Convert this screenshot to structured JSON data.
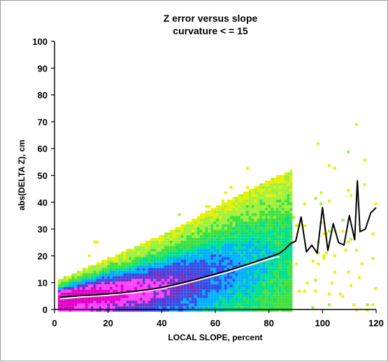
{
  "chart_data": {
    "type": "heatmap",
    "title": "Z error versus slope",
    "subtitle": "curvature < = 15",
    "xlabel": "LOCAL SLOPE, percent",
    "ylabel": "abs(DELTA Z), cm",
    "xlim": [
      0,
      120
    ],
    "ylim": [
      0,
      100
    ],
    "x_ticks": [
      0,
      20,
      40,
      60,
      80,
      100,
      120
    ],
    "y_ticks": [
      0,
      10,
      20,
      30,
      40,
      50,
      60,
      70,
      80,
      90,
      100
    ],
    "grid": false,
    "density_colors": {
      "highest": "#e000c8",
      "very_high": "#ff40ff",
      "high": "#7030c8",
      "medium_high": "#3050e8",
      "medium": "#00b0ff",
      "medium_low": "#00e090",
      "low": "#40e040",
      "lower": "#9ef03a",
      "lowest": "#e8f000"
    },
    "trend_lines": [
      {
        "color": "#ffffff",
        "x": [
          2,
          5,
          10,
          15,
          20,
          25,
          30,
          35,
          40,
          45,
          50,
          55,
          60,
          65,
          70,
          75,
          80,
          84
        ],
        "y": [
          4,
          4.2,
          4.7,
          5,
          5.3,
          5.8,
          6.3,
          7,
          7.8,
          8.8,
          10,
          11.3,
          12.6,
          14,
          15.6,
          17.2,
          18.8,
          19.8
        ]
      },
      {
        "color": "#000000",
        "x": [
          2,
          5,
          10,
          15,
          20,
          25,
          30,
          35,
          40,
          45,
          50,
          55,
          60,
          65,
          70,
          75,
          78,
          80,
          82,
          84,
          86,
          88,
          90,
          92,
          94,
          96,
          98,
          100,
          102,
          104,
          106,
          108,
          110,
          112,
          113,
          114,
          116,
          118,
          120
        ],
        "y": [
          4.5,
          4.8,
          5.2,
          5.4,
          5.8,
          6.2,
          6.8,
          7.4,
          8.2,
          9.3,
          10.5,
          11.8,
          13.2,
          14.6,
          16.2,
          17.8,
          18.8,
          19.5,
          20.2,
          21,
          22.5,
          24.5,
          25.5,
          34.5,
          21.5,
          24,
          21,
          38,
          22,
          32,
          25,
          24,
          35,
          26,
          48,
          29,
          30,
          36,
          38
        ]
      }
    ]
  }
}
